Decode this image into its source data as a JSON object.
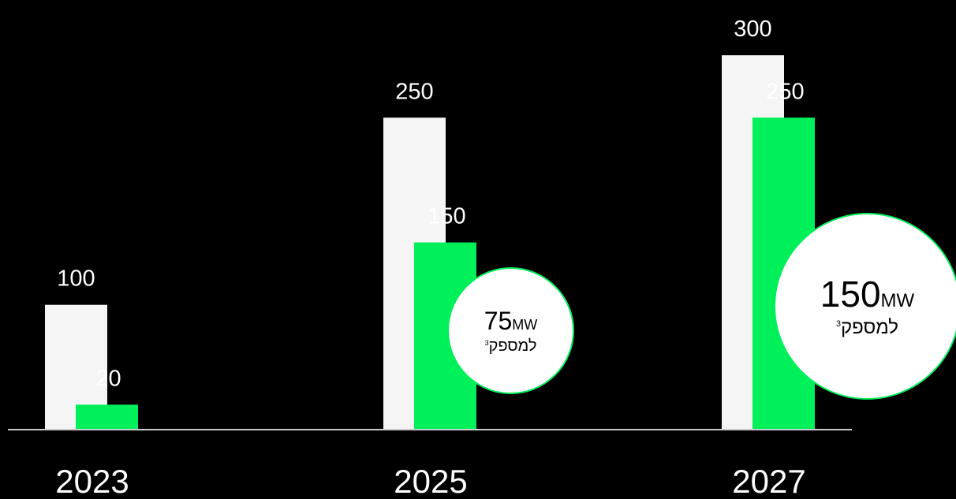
{
  "chart_data": {
    "type": "bar",
    "categories": [
      "2023",
      "2025",
      "2027"
    ],
    "series": [
      {
        "values": [
          100,
          250,
          300
        ],
        "color": "#f5f5f5"
      },
      {
        "values": [
          20,
          150,
          250
        ],
        "color": "#00f05a"
      }
    ],
    "ylim": [
      0,
      300
    ],
    "grid": false,
    "baseline_color": "#cccccc",
    "background": "#000000"
  },
  "annotations": [
    {
      "value": "75",
      "unit": "MW",
      "text": "למספק",
      "footnote": "3"
    },
    {
      "value": "150",
      "unit": "MW",
      "text": "למספק",
      "footnote": "3"
    }
  ]
}
